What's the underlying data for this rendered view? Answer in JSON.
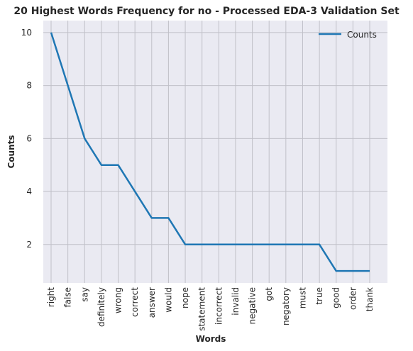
{
  "chart_data": {
    "type": "line",
    "title": "20 Highest Words Frequency for no - Processed EDA-3 Validation Set",
    "xlabel": "Words",
    "ylabel": "Counts",
    "categories": [
      "right",
      "false",
      "say",
      "definitely",
      "wrong",
      "correct",
      "answer",
      "would",
      "nope",
      "statement",
      "incorrect",
      "invalid",
      "negative",
      "got",
      "negatory",
      "must",
      "true",
      "good",
      "order",
      "thank"
    ],
    "series": [
      {
        "name": "Counts",
        "values": [
          10,
          8,
          6,
          5,
          5,
          4,
          3,
          3,
          2,
          2,
          2,
          2,
          2,
          2,
          2,
          2,
          2,
          1,
          1,
          1
        ]
      }
    ],
    "ylim": [
      0.55,
      10.45
    ],
    "yticks": [
      2,
      4,
      6,
      8,
      10
    ],
    "grid": true,
    "legend_position": "top-right",
    "colors": {
      "line": "#1f77b4",
      "background": "#eaeaf2",
      "grid": "#c0c0c8"
    }
  }
}
